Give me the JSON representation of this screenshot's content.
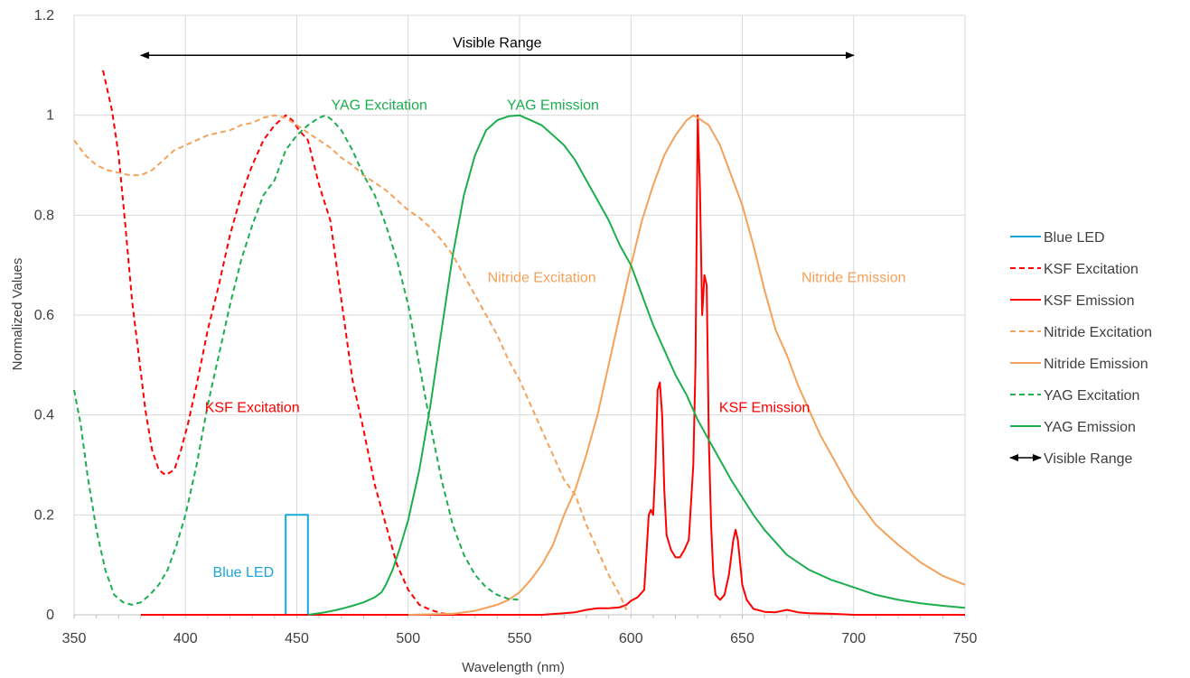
{
  "chart_data": {
    "type": "line",
    "title": "",
    "xlabel": "Wavelength (nm)",
    "ylabel": "Normalized Values",
    "xlim": [
      350,
      750
    ],
    "ylim": [
      0,
      1.2
    ],
    "xticks": [
      350,
      400,
      450,
      500,
      550,
      600,
      650,
      700,
      750
    ],
    "yticks": [
      0,
      0.2,
      0.4,
      0.6,
      0.8,
      1,
      1.2
    ],
    "ytick_labels": [
      "0",
      "0.2",
      "0.4",
      "0.6",
      "0.8",
      "1",
      "1.2"
    ],
    "grid": true,
    "legend_position": "right",
    "colors": {
      "blue": "#1aa7d9",
      "red": "#ff0000",
      "orange": "#f4a259",
      "green": "#1cae4e",
      "black": "#000000"
    },
    "series": [
      {
        "name": "Blue LED",
        "color": "#1aa7d9",
        "dash": "solid",
        "x": [
          445,
          445,
          455,
          455
        ],
        "y": [
          0,
          0.2,
          0.2,
          0
        ]
      },
      {
        "name": "KSF Excitation",
        "color": "#ff0000",
        "dash": "dashed",
        "x": [
          363,
          367,
          370,
          373,
          376,
          379,
          382,
          385,
          388,
          391,
          395,
          398,
          401,
          405,
          410,
          415,
          420,
          425,
          430,
          435,
          440,
          445,
          448,
          451,
          455,
          460,
          465,
          470,
          475,
          480,
          485,
          490,
          495,
          500,
          505,
          510,
          515,
          520
        ],
        "y": [
          1.09,
          1.01,
          0.92,
          0.78,
          0.63,
          0.52,
          0.41,
          0.33,
          0.29,
          0.28,
          0.29,
          0.33,
          0.38,
          0.46,
          0.57,
          0.66,
          0.76,
          0.84,
          0.9,
          0.95,
          0.98,
          1.0,
          0.99,
          0.97,
          0.95,
          0.86,
          0.79,
          0.63,
          0.47,
          0.37,
          0.26,
          0.18,
          0.1,
          0.05,
          0.02,
          0.01,
          0.003,
          0
        ]
      },
      {
        "name": "KSF Emission",
        "color": "#ff0000",
        "dash": "solid",
        "x": [
          380,
          500,
          560,
          570,
          575,
          580,
          585,
          590,
          595,
          598,
          600,
          603,
          606,
          608,
          609,
          610,
          611,
          612,
          613,
          614,
          615,
          616,
          618,
          620,
          622,
          624,
          626,
          628,
          629,
          630,
          631,
          632,
          633,
          634,
          635,
          636,
          637,
          638,
          640,
          642,
          644,
          646,
          647,
          648,
          650,
          652,
          655,
          660,
          665,
          670,
          675,
          680,
          690,
          700,
          750
        ],
        "y": [
          0,
          0,
          0,
          0.003,
          0.005,
          0.01,
          0.013,
          0.013,
          0.015,
          0.02,
          0.028,
          0.035,
          0.05,
          0.2,
          0.21,
          0.2,
          0.3,
          0.45,
          0.465,
          0.4,
          0.25,
          0.16,
          0.13,
          0.115,
          0.115,
          0.13,
          0.15,
          0.3,
          0.5,
          1.0,
          0.85,
          0.6,
          0.68,
          0.66,
          0.35,
          0.18,
          0.08,
          0.04,
          0.03,
          0.04,
          0.08,
          0.15,
          0.17,
          0.15,
          0.06,
          0.03,
          0.012,
          0.006,
          0.005,
          0.01,
          0.005,
          0.003,
          0.002,
          0,
          0
        ]
      },
      {
        "name": "Nitride Excitation",
        "color": "#f4a259",
        "dash": "dashed",
        "x": [
          350,
          355,
          360,
          365,
          370,
          375,
          380,
          385,
          390,
          395,
          400,
          405,
          410,
          415,
          420,
          425,
          430,
          435,
          440,
          445,
          450,
          455,
          460,
          465,
          470,
          475,
          480,
          485,
          490,
          495,
          500,
          505,
          510,
          515,
          520,
          525,
          530,
          535,
          540,
          545,
          550,
          555,
          560,
          565,
          570,
          575,
          580,
          585,
          590,
          595,
          598
        ],
        "y": [
          0.95,
          0.92,
          0.9,
          0.89,
          0.885,
          0.88,
          0.88,
          0.89,
          0.91,
          0.93,
          0.94,
          0.95,
          0.96,
          0.965,
          0.97,
          0.98,
          0.985,
          0.995,
          1.0,
          0.995,
          0.98,
          0.965,
          0.95,
          0.935,
          0.915,
          0.9,
          0.88,
          0.865,
          0.85,
          0.83,
          0.81,
          0.795,
          0.775,
          0.75,
          0.72,
          0.68,
          0.64,
          0.6,
          0.56,
          0.51,
          0.47,
          0.42,
          0.37,
          0.32,
          0.27,
          0.24,
          0.18,
          0.13,
          0.08,
          0.04,
          0.01
        ]
      },
      {
        "name": "Nitride Emission",
        "color": "#f4a259",
        "dash": "solid",
        "x": [
          500,
          520,
          530,
          540,
          545,
          550,
          555,
          560,
          565,
          570,
          575,
          580,
          585,
          590,
          595,
          600,
          605,
          610,
          615,
          620,
          625,
          628,
          630,
          635,
          640,
          645,
          650,
          655,
          660,
          665,
          670,
          675,
          680,
          685,
          690,
          695,
          700,
          705,
          710,
          720,
          730,
          740,
          750
        ],
        "y": [
          0,
          0.002,
          0.008,
          0.02,
          0.03,
          0.045,
          0.07,
          0.1,
          0.14,
          0.2,
          0.25,
          0.32,
          0.4,
          0.5,
          0.6,
          0.7,
          0.79,
          0.86,
          0.92,
          0.96,
          0.99,
          1.0,
          0.995,
          0.98,
          0.94,
          0.88,
          0.82,
          0.74,
          0.65,
          0.57,
          0.52,
          0.46,
          0.41,
          0.36,
          0.32,
          0.28,
          0.24,
          0.21,
          0.18,
          0.14,
          0.105,
          0.078,
          0.06
        ]
      },
      {
        "name": "YAG Excitation",
        "color": "#1cae4e",
        "dash": "dashed",
        "x": [
          350,
          353,
          356,
          360,
          364,
          368,
          372,
          376,
          380,
          384,
          388,
          392,
          396,
          400,
          405,
          410,
          415,
          420,
          425,
          430,
          435,
          440,
          445,
          450,
          455,
          460,
          463,
          466,
          470,
          475,
          480,
          485,
          490,
          495,
          500,
          505,
          510,
          515,
          520,
          525,
          530,
          535,
          540,
          545,
          550
        ],
        "y": [
          0.45,
          0.38,
          0.28,
          0.17,
          0.09,
          0.04,
          0.025,
          0.02,
          0.025,
          0.04,
          0.06,
          0.09,
          0.14,
          0.2,
          0.3,
          0.42,
          0.52,
          0.62,
          0.71,
          0.78,
          0.84,
          0.87,
          0.93,
          0.96,
          0.98,
          0.995,
          1.0,
          0.99,
          0.97,
          0.93,
          0.88,
          0.84,
          0.78,
          0.71,
          0.62,
          0.5,
          0.38,
          0.27,
          0.18,
          0.12,
          0.08,
          0.055,
          0.04,
          0.032,
          0.03
        ]
      },
      {
        "name": "YAG Emission",
        "color": "#1cae4e",
        "dash": "solid",
        "x": [
          455,
          460,
          465,
          470,
          475,
          480,
          485,
          488,
          490,
          493,
          496,
          500,
          505,
          510,
          515,
          520,
          525,
          530,
          535,
          540,
          545,
          550,
          555,
          560,
          565,
          570,
          575,
          580,
          585,
          590,
          595,
          600,
          605,
          610,
          615,
          620,
          625,
          630,
          635,
          640,
          645,
          650,
          655,
          660,
          665,
          670,
          675,
          680,
          690,
          700,
          710,
          720,
          730,
          740,
          750
        ],
        "y": [
          0,
          0.003,
          0.007,
          0.012,
          0.018,
          0.025,
          0.035,
          0.045,
          0.06,
          0.09,
          0.13,
          0.19,
          0.29,
          0.42,
          0.57,
          0.72,
          0.84,
          0.92,
          0.97,
          0.99,
          0.998,
          1.0,
          0.99,
          0.98,
          0.96,
          0.94,
          0.91,
          0.87,
          0.83,
          0.79,
          0.74,
          0.7,
          0.64,
          0.58,
          0.53,
          0.48,
          0.44,
          0.39,
          0.35,
          0.31,
          0.27,
          0.235,
          0.2,
          0.17,
          0.145,
          0.12,
          0.105,
          0.09,
          0.07,
          0.055,
          0.04,
          0.03,
          0.023,
          0.018,
          0.014
        ]
      },
      {
        "name": "Visible Range",
        "color": "#000000",
        "dash": "arrow",
        "x": [
          380,
          700
        ],
        "y": [
          1.12,
          1.12
        ]
      }
    ],
    "annotations": [
      {
        "text": "Visible Range",
        "x": 540,
        "y": 1.145,
        "color": "#000000"
      },
      {
        "text": "YAG Excitation",
        "x": 487,
        "y": 1.02,
        "color": "#1cae4e"
      },
      {
        "text": "YAG Emission",
        "x": 565,
        "y": 1.02,
        "color": "#1cae4e"
      },
      {
        "text": "Nitride Excitation",
        "x": 560,
        "y": 0.675,
        "color": "#f4a259"
      },
      {
        "text": "Nitride Emission",
        "x": 700,
        "y": 0.675,
        "color": "#f4a259"
      },
      {
        "text": "KSF Excitation",
        "x": 430,
        "y": 0.415,
        "color": "#ff0000"
      },
      {
        "text": "KSF Emission",
        "x": 660,
        "y": 0.415,
        "color": "#ff0000"
      },
      {
        "text": "Blue LED",
        "x": 426,
        "y": 0.085,
        "color": "#1aa7d9"
      }
    ]
  }
}
